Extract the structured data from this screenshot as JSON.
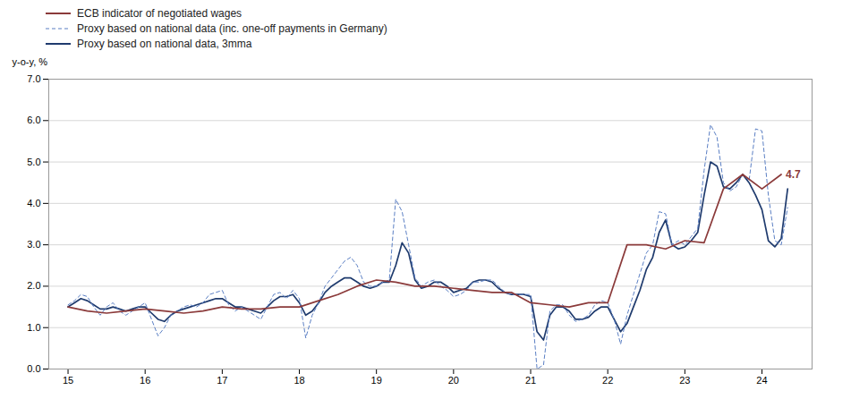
{
  "chart_data": {
    "type": "line",
    "ylabel": "y-o-y, %",
    "xlim": [
      14.75,
      24.65
    ],
    "xticks": [
      15,
      16,
      17,
      18,
      19,
      20,
      21,
      22,
      23,
      24
    ],
    "ylim": [
      0,
      7
    ],
    "yticks": [
      {
        "value": 0,
        "label": "0.0"
      },
      {
        "value": 1,
        "label": "1.0"
      },
      {
        "value": 2,
        "label": "2.0"
      },
      {
        "value": 3,
        "label": "3.0"
      },
      {
        "value": 4,
        "label": "4.0"
      },
      {
        "value": 5,
        "label": "5.0"
      },
      {
        "value": 6,
        "label": "6.0"
      },
      {
        "value": 7,
        "label": "7.0"
      }
    ],
    "grid": true,
    "legend": "upper left",
    "series": [
      {
        "name": "ECB indicator of negotiated wages",
        "color": "#8B3A3A",
        "line_style": "solid",
        "x": [
          15.0,
          15.25,
          15.5,
          15.75,
          16.0,
          16.25,
          16.5,
          16.75,
          17.0,
          17.25,
          17.5,
          17.75,
          18.0,
          18.25,
          18.5,
          18.75,
          19.0,
          19.25,
          19.5,
          19.75,
          20.0,
          20.25,
          20.5,
          20.75,
          21.0,
          21.25,
          21.5,
          21.75,
          22.0,
          22.25,
          22.5,
          22.75,
          23.0,
          23.25,
          23.5,
          23.75,
          24.0,
          24.25
        ],
        "values": [
          1.5,
          1.4,
          1.35,
          1.4,
          1.45,
          1.4,
          1.35,
          1.4,
          1.5,
          1.45,
          1.45,
          1.5,
          1.5,
          1.65,
          1.8,
          2.0,
          2.15,
          2.1,
          2.0,
          2.0,
          1.95,
          1.9,
          1.85,
          1.85,
          1.6,
          1.55,
          1.5,
          1.6,
          1.6,
          3.0,
          3.0,
          2.9,
          3.1,
          3.05,
          4.35,
          4.7,
          4.35,
          4.7
        ]
      },
      {
        "name": "Proxy based on national data (inc. one-off payments in Germany)",
        "color": "#5B7FC4",
        "line_style": "dashed",
        "x": [
          15.0,
          15.083,
          15.167,
          15.25,
          15.333,
          15.417,
          15.5,
          15.583,
          15.667,
          15.75,
          15.833,
          15.917,
          16.0,
          16.083,
          16.167,
          16.25,
          16.333,
          16.417,
          16.5,
          16.583,
          16.667,
          16.75,
          16.833,
          16.917,
          17.0,
          17.083,
          17.167,
          17.25,
          17.333,
          17.417,
          17.5,
          17.583,
          17.667,
          17.75,
          17.833,
          17.917,
          18.0,
          18.083,
          18.167,
          18.25,
          18.333,
          18.417,
          18.5,
          18.583,
          18.667,
          18.75,
          18.833,
          18.917,
          19.0,
          19.083,
          19.167,
          19.25,
          19.333,
          19.417,
          19.5,
          19.583,
          19.667,
          19.75,
          19.833,
          19.917,
          20.0,
          20.083,
          20.167,
          20.25,
          20.333,
          20.417,
          20.5,
          20.583,
          20.667,
          20.75,
          20.833,
          20.917,
          21.0,
          21.083,
          21.167,
          21.25,
          21.333,
          21.417,
          21.5,
          21.583,
          21.667,
          21.75,
          21.833,
          21.917,
          22.0,
          22.083,
          22.167,
          22.25,
          22.333,
          22.417,
          22.5,
          22.583,
          22.667,
          22.75,
          22.833,
          22.917,
          23.0,
          23.083,
          23.167,
          23.25,
          23.333,
          23.417,
          23.5,
          23.583,
          23.667,
          23.75,
          23.833,
          23.917,
          24.0,
          24.083,
          24.167,
          24.25,
          24.333
        ],
        "values": [
          1.55,
          1.65,
          1.8,
          1.75,
          1.5,
          1.3,
          1.5,
          1.6,
          1.4,
          1.3,
          1.4,
          1.5,
          1.6,
          1.2,
          0.8,
          1.0,
          1.3,
          1.4,
          1.5,
          1.55,
          1.5,
          1.6,
          1.8,
          1.85,
          1.9,
          1.55,
          1.4,
          1.5,
          1.4,
          1.3,
          1.2,
          1.5,
          1.8,
          1.85,
          1.7,
          1.9,
          1.7,
          0.75,
          1.3,
          1.6,
          2.0,
          2.2,
          2.4,
          2.6,
          2.7,
          2.5,
          2.1,
          2.0,
          2.0,
          2.1,
          2.15,
          4.1,
          3.8,
          3.0,
          2.2,
          2.0,
          2.1,
          2.15,
          2.0,
          1.9,
          1.75,
          1.8,
          1.9,
          2.1,
          2.1,
          2.15,
          2.15,
          2.0,
          1.85,
          1.8,
          1.8,
          1.8,
          1.8,
          0.0,
          0.1,
          1.4,
          1.55,
          1.55,
          1.3,
          1.15,
          1.2,
          1.3,
          1.55,
          1.65,
          1.6,
          1.2,
          0.6,
          1.3,
          1.8,
          2.3,
          2.8,
          3.0,
          3.8,
          3.75,
          3.0,
          3.1,
          3.0,
          3.2,
          3.4,
          4.8,
          5.9,
          5.6,
          4.5,
          4.3,
          4.4,
          4.7,
          4.55,
          5.8,
          5.75,
          4.2,
          3.1,
          3.0,
          3.9
        ]
      },
      {
        "name": "Proxy based on national data, 3mma",
        "color": "#1F3B6E",
        "line_style": "solid",
        "x": [
          15.0,
          15.083,
          15.167,
          15.25,
          15.333,
          15.417,
          15.5,
          15.583,
          15.667,
          15.75,
          15.833,
          15.917,
          16.0,
          16.083,
          16.167,
          16.25,
          16.333,
          16.417,
          16.5,
          16.583,
          16.667,
          16.75,
          16.833,
          16.917,
          17.0,
          17.083,
          17.167,
          17.25,
          17.333,
          17.417,
          17.5,
          17.583,
          17.667,
          17.75,
          17.833,
          17.917,
          18.0,
          18.083,
          18.167,
          18.25,
          18.333,
          18.417,
          18.5,
          18.583,
          18.667,
          18.75,
          18.833,
          18.917,
          19.0,
          19.083,
          19.167,
          19.25,
          19.333,
          19.417,
          19.5,
          19.583,
          19.667,
          19.75,
          19.833,
          19.917,
          20.0,
          20.083,
          20.167,
          20.25,
          20.333,
          20.417,
          20.5,
          20.583,
          20.667,
          20.75,
          20.833,
          20.917,
          21.0,
          21.083,
          21.167,
          21.25,
          21.333,
          21.417,
          21.5,
          21.583,
          21.667,
          21.75,
          21.833,
          21.917,
          22.0,
          22.083,
          22.167,
          22.25,
          22.333,
          22.417,
          22.5,
          22.583,
          22.667,
          22.75,
          22.833,
          22.917,
          23.0,
          23.083,
          23.167,
          23.25,
          23.333,
          23.417,
          23.5,
          23.583,
          23.667,
          23.75,
          23.833,
          23.917,
          24.0,
          24.083,
          24.167,
          24.25,
          24.333
        ],
        "values": [
          1.5,
          1.6,
          1.7,
          1.65,
          1.55,
          1.45,
          1.45,
          1.5,
          1.45,
          1.4,
          1.45,
          1.5,
          1.5,
          1.35,
          1.2,
          1.15,
          1.3,
          1.4,
          1.45,
          1.5,
          1.55,
          1.6,
          1.65,
          1.7,
          1.7,
          1.6,
          1.5,
          1.5,
          1.45,
          1.4,
          1.35,
          1.5,
          1.65,
          1.75,
          1.75,
          1.8,
          1.6,
          1.3,
          1.4,
          1.6,
          1.85,
          2.0,
          2.1,
          2.2,
          2.2,
          2.1,
          2.0,
          1.95,
          2.0,
          2.1,
          2.1,
          2.5,
          3.05,
          2.8,
          2.15,
          1.95,
          2.0,
          2.1,
          2.1,
          2.0,
          1.85,
          1.9,
          1.95,
          2.1,
          2.15,
          2.15,
          2.1,
          1.95,
          1.85,
          1.8,
          1.8,
          1.8,
          1.75,
          0.9,
          0.7,
          1.3,
          1.5,
          1.5,
          1.4,
          1.2,
          1.2,
          1.25,
          1.4,
          1.5,
          1.5,
          1.2,
          0.9,
          1.1,
          1.5,
          1.9,
          2.4,
          2.7,
          3.3,
          3.6,
          3.0,
          2.9,
          2.95,
          3.1,
          3.3,
          4.2,
          5.0,
          4.9,
          4.4,
          4.35,
          4.5,
          4.7,
          4.5,
          4.2,
          3.85,
          3.1,
          2.95,
          3.15,
          4.35
        ]
      }
    ],
    "annotations": [
      {
        "text": "4.7",
        "x": 24.25,
        "y": 4.7,
        "color": "#8B3A3A"
      }
    ]
  }
}
